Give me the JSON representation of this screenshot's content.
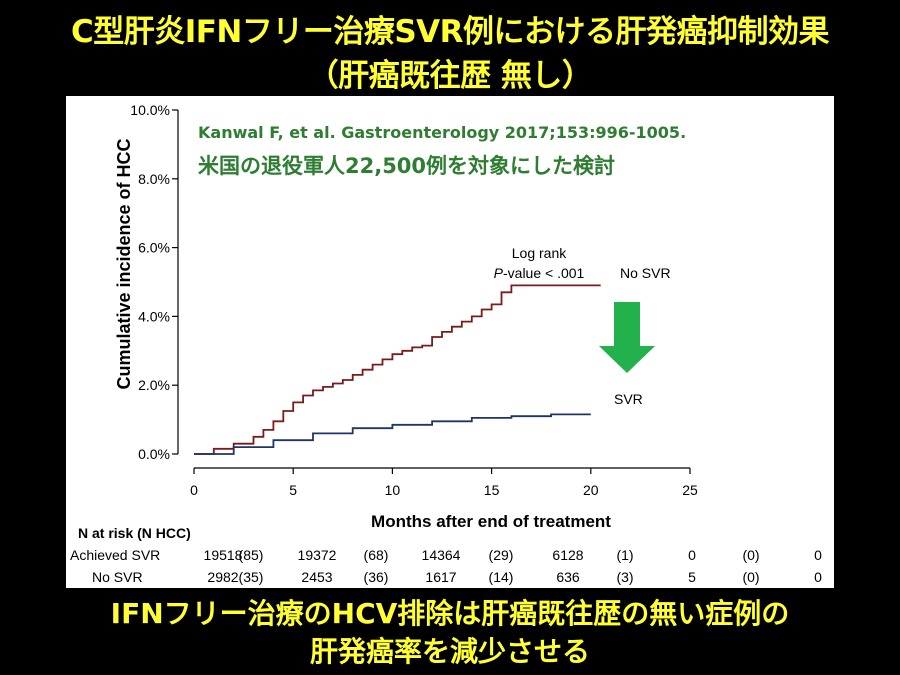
{
  "slide": {
    "title_line1": "C型肝炎IFNフリー治療SVR例における肝発癌抑制効果",
    "title_line2": "（肝癌既往歴 無し）",
    "conclusion_line1": "IFNフリー治療のHCV排除は肝癌既往歴の無い症例の",
    "conclusion_line2": "肝発癌率を減少させる",
    "colors": {
      "title": "#ffff33",
      "background": "#000000",
      "annotation_green": "#2e7d32",
      "arrow_green": "#22b14c",
      "no_svr": "#7b1a1a",
      "svr": "#1f3564"
    }
  },
  "annotation": {
    "citation": "Kanwal F, et al. Gastroenterology 2017;153:996-1005.",
    "description": "米国の退役軍人22,500例を対象にした検討",
    "arrow_icon": "down-arrow-icon"
  },
  "chart_data": {
    "type": "line",
    "xlabel": "Months after end of treatment",
    "ylabel": "Cumulative incidence of HCC",
    "xlim": [
      0,
      25
    ],
    "ylim": [
      0,
      10
    ],
    "xticks": [
      "0",
      "5",
      "10",
      "15",
      "20",
      "25"
    ],
    "yticks": [
      "0.0%",
      "2.0%",
      "4.0%",
      "6.0%",
      "8.0%",
      "10.0%"
    ],
    "grid": false,
    "logrank_label": "Log rank",
    "pvalue_prefix": "P",
    "pvalue_rest": "-value < .001",
    "series": [
      {
        "name": "No SVR",
        "color": "#7b1a1a",
        "x": [
          0,
          1,
          2,
          3,
          3.5,
          4,
          4.5,
          5,
          5.5,
          6,
          6.5,
          7,
          7.5,
          8,
          8.5,
          9,
          9.5,
          10,
          10.5,
          11,
          11.5,
          12,
          12.5,
          13,
          13.5,
          14,
          14.5,
          15,
          15.5,
          16,
          17,
          18,
          19,
          20,
          20.5
        ],
        "y": [
          0,
          0.15,
          0.3,
          0.5,
          0.7,
          0.95,
          1.25,
          1.5,
          1.7,
          1.85,
          1.95,
          2.05,
          2.15,
          2.3,
          2.45,
          2.6,
          2.75,
          2.9,
          3.0,
          3.1,
          3.15,
          3.4,
          3.55,
          3.7,
          3.85,
          4.0,
          4.2,
          4.35,
          4.7,
          4.9,
          4.9,
          4.9,
          4.9,
          4.9,
          4.9
        ]
      },
      {
        "name": "SVR",
        "color": "#1f3564",
        "x": [
          0,
          2,
          4,
          6,
          8,
          10,
          12,
          14,
          16,
          18,
          20
        ],
        "y": [
          0,
          0.2,
          0.4,
          0.6,
          0.75,
          0.85,
          0.95,
          1.05,
          1.1,
          1.15,
          1.15
        ]
      }
    ],
    "risk_table": {
      "header": "N at risk (N HCC)",
      "rows": [
        {
          "label": "Achieved SVR",
          "values": [
            "19518",
            "(85)",
            "19372",
            "(68)",
            "14364",
            "(29)",
            "6128",
            "(1)",
            "0",
            "(0)",
            "0"
          ]
        },
        {
          "label": "No SVR",
          "values": [
            "2982",
            "(35)",
            "2453",
            "(36)",
            "1617",
            "(14)",
            "636",
            "(3)",
            "5",
            "(0)",
            "0"
          ]
        }
      ]
    }
  }
}
